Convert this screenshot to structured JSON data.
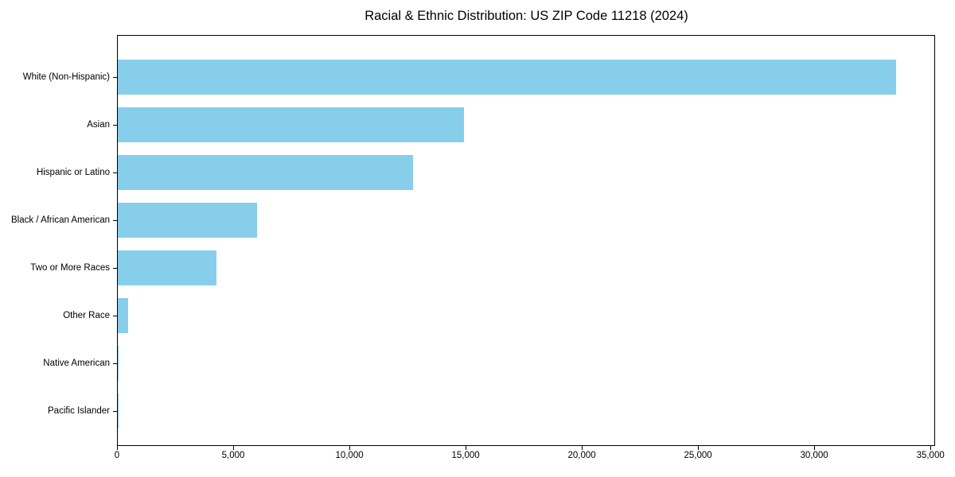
{
  "title": "Racial & Ethnic Distribution: US ZIP Code 11218 (2024)",
  "chart_data": {
    "type": "bar",
    "orientation": "horizontal",
    "title": "Racial & Ethnic Distribution: US ZIP Code 11218 (2024)",
    "categories": [
      "White (Non-Hispanic)",
      "Asian",
      "Hispanic or Latino",
      "Black / African American",
      "Two or More Races",
      "Other Race",
      "Native American",
      "Pacific Islander"
    ],
    "values": [
      33500,
      14900,
      12700,
      6000,
      4230,
      460,
      50,
      25
    ],
    "xlabel": "",
    "ylabel": "",
    "xlim": [
      0,
      35200
    ],
    "xticks": {
      "values": [
        0,
        5000,
        10000,
        15000,
        20000,
        25000,
        30000,
        35000
      ],
      "labels": [
        "0",
        "5,000",
        "10,000",
        "15,000",
        "20,000",
        "25,000",
        "30,000",
        "35,000"
      ]
    },
    "bar_color": "#87CEEB",
    "spine_color": "#000000",
    "text_color": "#000000",
    "grid": false
  }
}
